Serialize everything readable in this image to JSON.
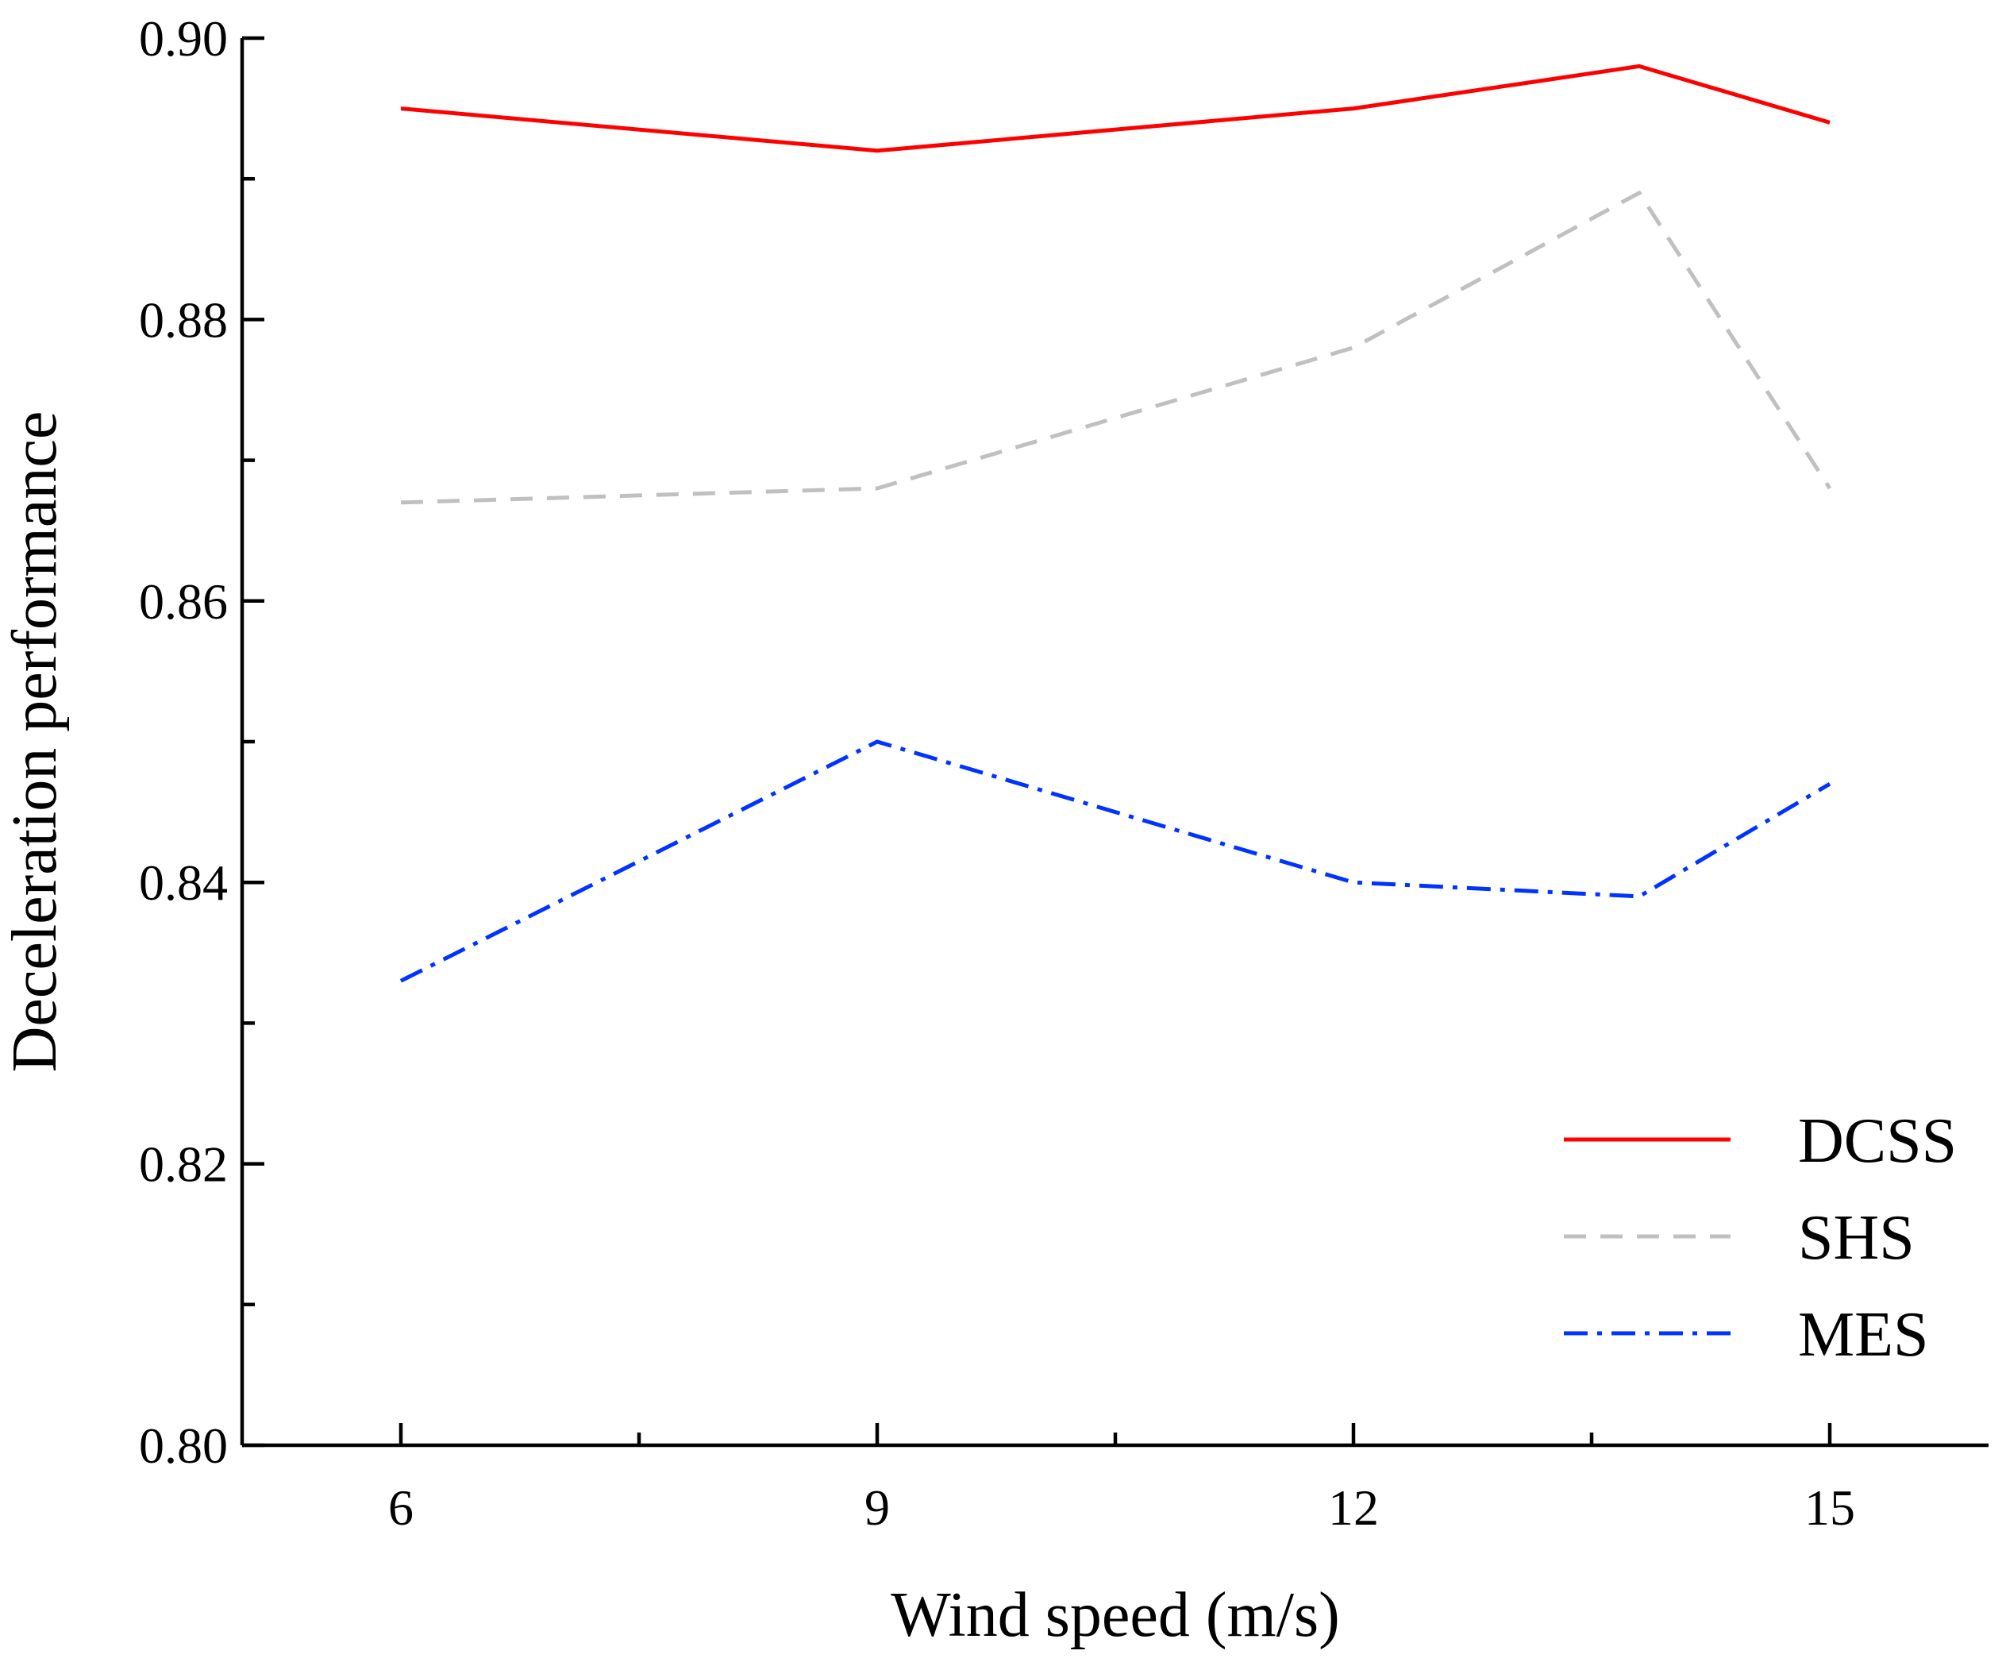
{
  "chart_data": {
    "type": "line",
    "title": "",
    "xlabel": "Wind speed (m/s)",
    "ylabel": "Deceleration performance",
    "xlim": [
      5,
      16
    ],
    "ylim": [
      0.8,
      0.9
    ],
    "x_major_ticks": [
      6,
      9,
      12,
      15
    ],
    "x_tick_labels": [
      "6",
      "9",
      "12",
      "15"
    ],
    "x_minor_ticks": [
      7.5,
      10.5,
      13.5
    ],
    "y_major_ticks": [
      0.8,
      0.82,
      0.84,
      0.86,
      0.88,
      0.9
    ],
    "y_tick_labels": [
      "0.80",
      "0.82",
      "0.84",
      "0.86",
      "0.88",
      "0.90"
    ],
    "y_minor_ticks": [
      0.81,
      0.83,
      0.85,
      0.87,
      0.89
    ],
    "grid": false,
    "legend_position": "bottom-right",
    "series": [
      {
        "name": "DCSS",
        "color": "#ff0000",
        "dash": "solid",
        "x": [
          6,
          9,
          12,
          13.8,
          15
        ],
        "values": [
          0.895,
          0.892,
          0.895,
          0.898,
          0.894
        ]
      },
      {
        "name": "SHS",
        "color": "#c0c0c0",
        "dash": "dash",
        "x": [
          6,
          9,
          12,
          13.8,
          15
        ],
        "values": [
          0.867,
          0.868,
          0.878,
          0.889,
          0.868
        ]
      },
      {
        "name": "MES",
        "color": "#0033ff",
        "dash": "dashdot",
        "x": [
          6,
          9,
          12,
          13.8,
          15
        ],
        "values": [
          0.833,
          0.85,
          0.84,
          0.839,
          0.847
        ]
      }
    ]
  }
}
